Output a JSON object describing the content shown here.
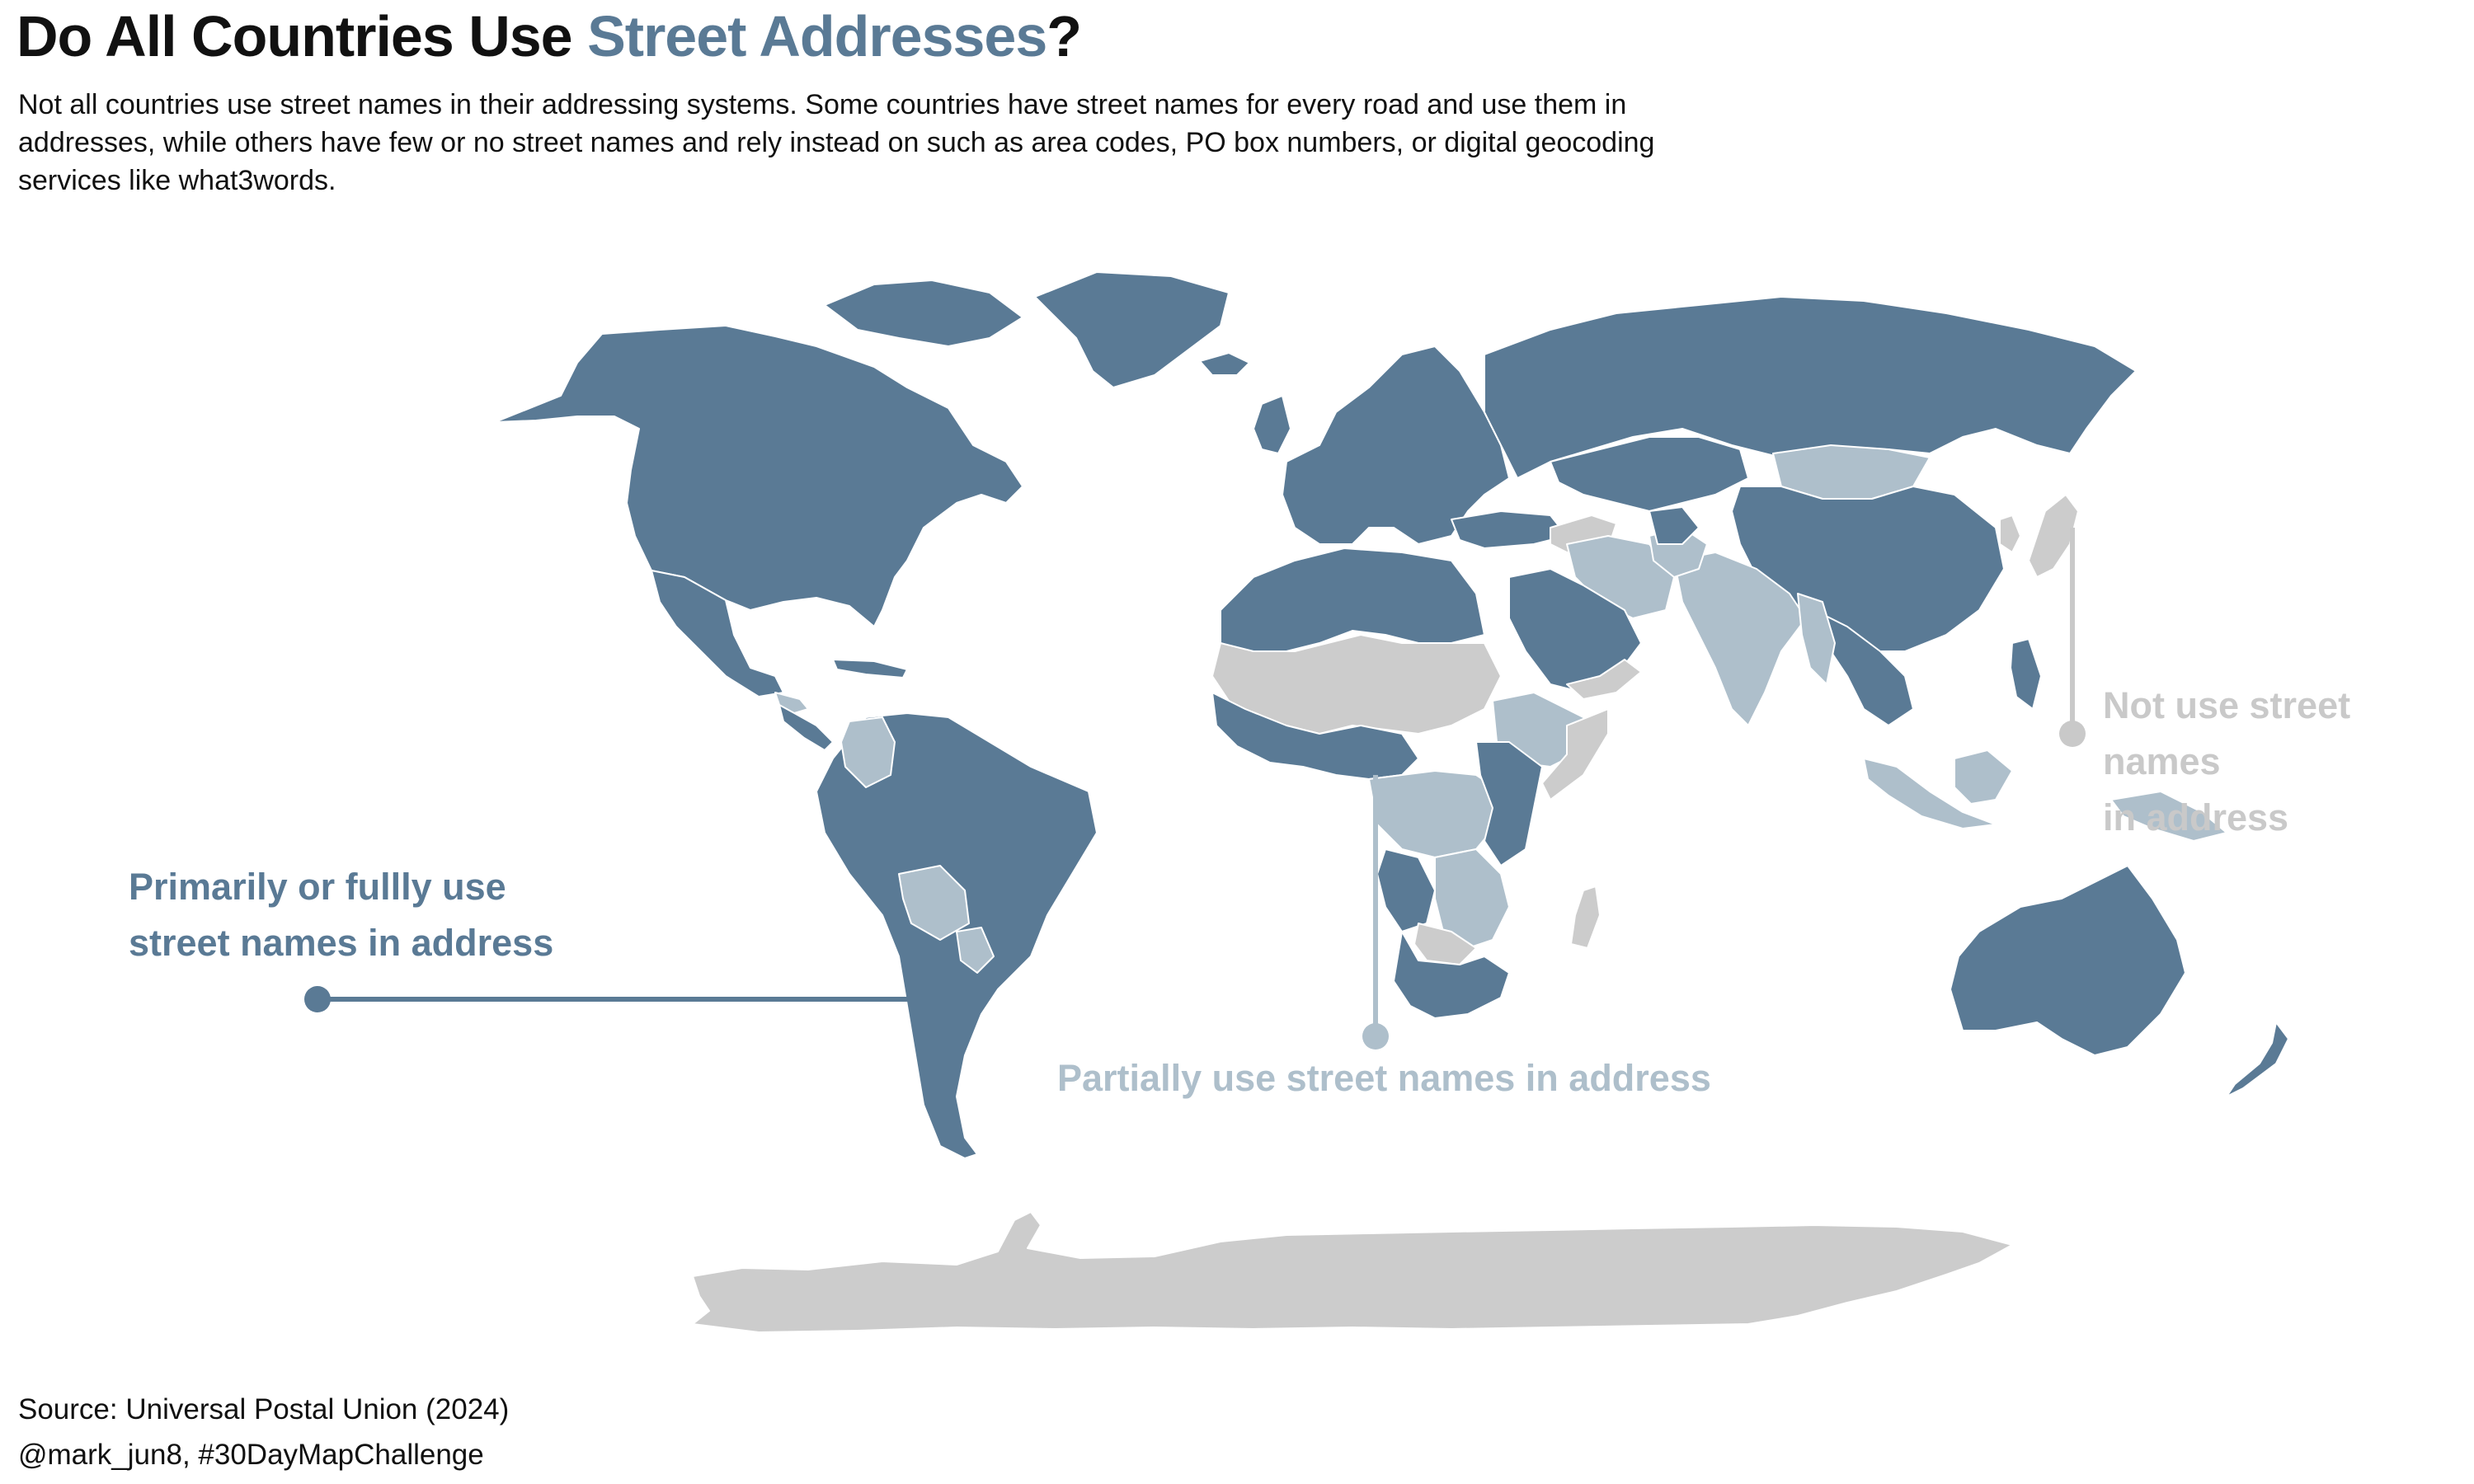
{
  "title": {
    "prefix": "Do All Countries Use ",
    "highlight": "Street Addresses",
    "suffix": "?"
  },
  "subtitle": "Not all countries use street names in their addressing systems. Some countries have street names for every road and use them in addresses, while others have few or no street names and rely instead on such as area codes, PO box numbers, or digital geocoding services like what3words.",
  "colors": {
    "primary": "#5a7a95",
    "partial": "#aebfcb",
    "none": "#cccccc",
    "borders": "#ffffff"
  },
  "legend": {
    "primary": {
      "line1": "Primarily or fullly use",
      "line2": "street names in address"
    },
    "partial": {
      "text": "Partially use street names in address"
    },
    "none": {
      "line1": "Not use street names",
      "line2": "in address"
    }
  },
  "footer": {
    "source": "Source: Universal Postal Union (2024)",
    "credit": "@mark_jun8, #30DayMapChallenge"
  }
}
